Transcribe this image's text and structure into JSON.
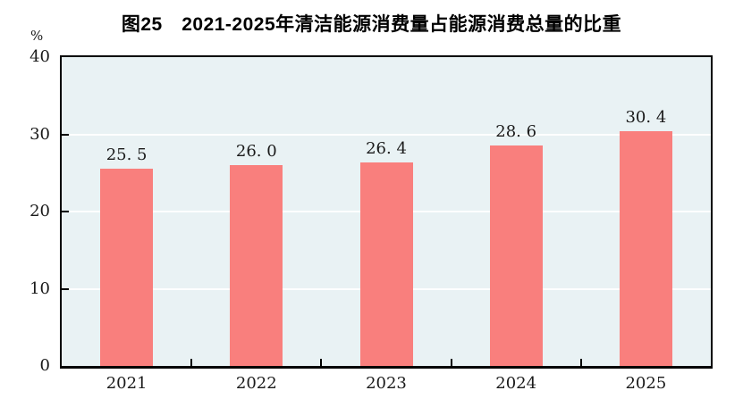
{
  "title": "图25　2021-2025年清洁能源消费量占能源消费总量的比重",
  "unit_label": "%",
  "chart_data": {
    "type": "bar",
    "title": "图25　2021-2025年清洁能源消费量占能源消费总量的比重",
    "categories": [
      "2021",
      "2022",
      "2023",
      "2024",
      "2025"
    ],
    "values": [
      25.5,
      26.0,
      26.4,
      28.6,
      30.4
    ],
    "value_labels": [
      "25. 5",
      "26. 0",
      "26. 4",
      "28. 6",
      "30. 4"
    ],
    "xlabel": "",
    "ylabel": "%",
    "ylim": [
      0,
      40
    ],
    "yticks": [
      0,
      10,
      20,
      30,
      40
    ],
    "gridlines_at": [
      10,
      20,
      30
    ],
    "legend": "none",
    "colors": {
      "bar": "#f97f7d",
      "plot_background": "#e9f2f4",
      "gridline": "#fdfefe",
      "axis_frame": "#000000",
      "text": "#1a1a1a"
    }
  }
}
